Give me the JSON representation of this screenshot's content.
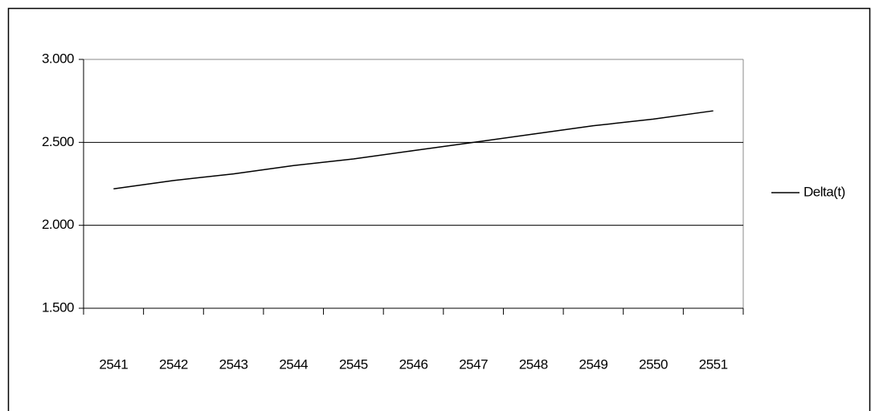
{
  "chart_data": {
    "type": "line",
    "categories": [
      "2541",
      "2542",
      "2543",
      "2544",
      "2545",
      "2546",
      "2547",
      "2548",
      "2549",
      "2550",
      "2551"
    ],
    "series": [
      {
        "name": "Delta(t)",
        "color": "#000000",
        "values": [
          2.22,
          2.27,
          2.31,
          2.36,
          2.4,
          2.45,
          2.5,
          2.55,
          2.6,
          2.64,
          2.69
        ]
      }
    ],
    "ylim": [
      1.5,
      3.0
    ],
    "yticks": [
      {
        "value": 1.5,
        "label": "1.500"
      },
      {
        "value": 2.0,
        "label": "2.000"
      },
      {
        "value": 2.5,
        "label": "2.500"
      },
      {
        "value": 3.0,
        "label": "3.000"
      }
    ],
    "grid": true,
    "legend": "right"
  }
}
